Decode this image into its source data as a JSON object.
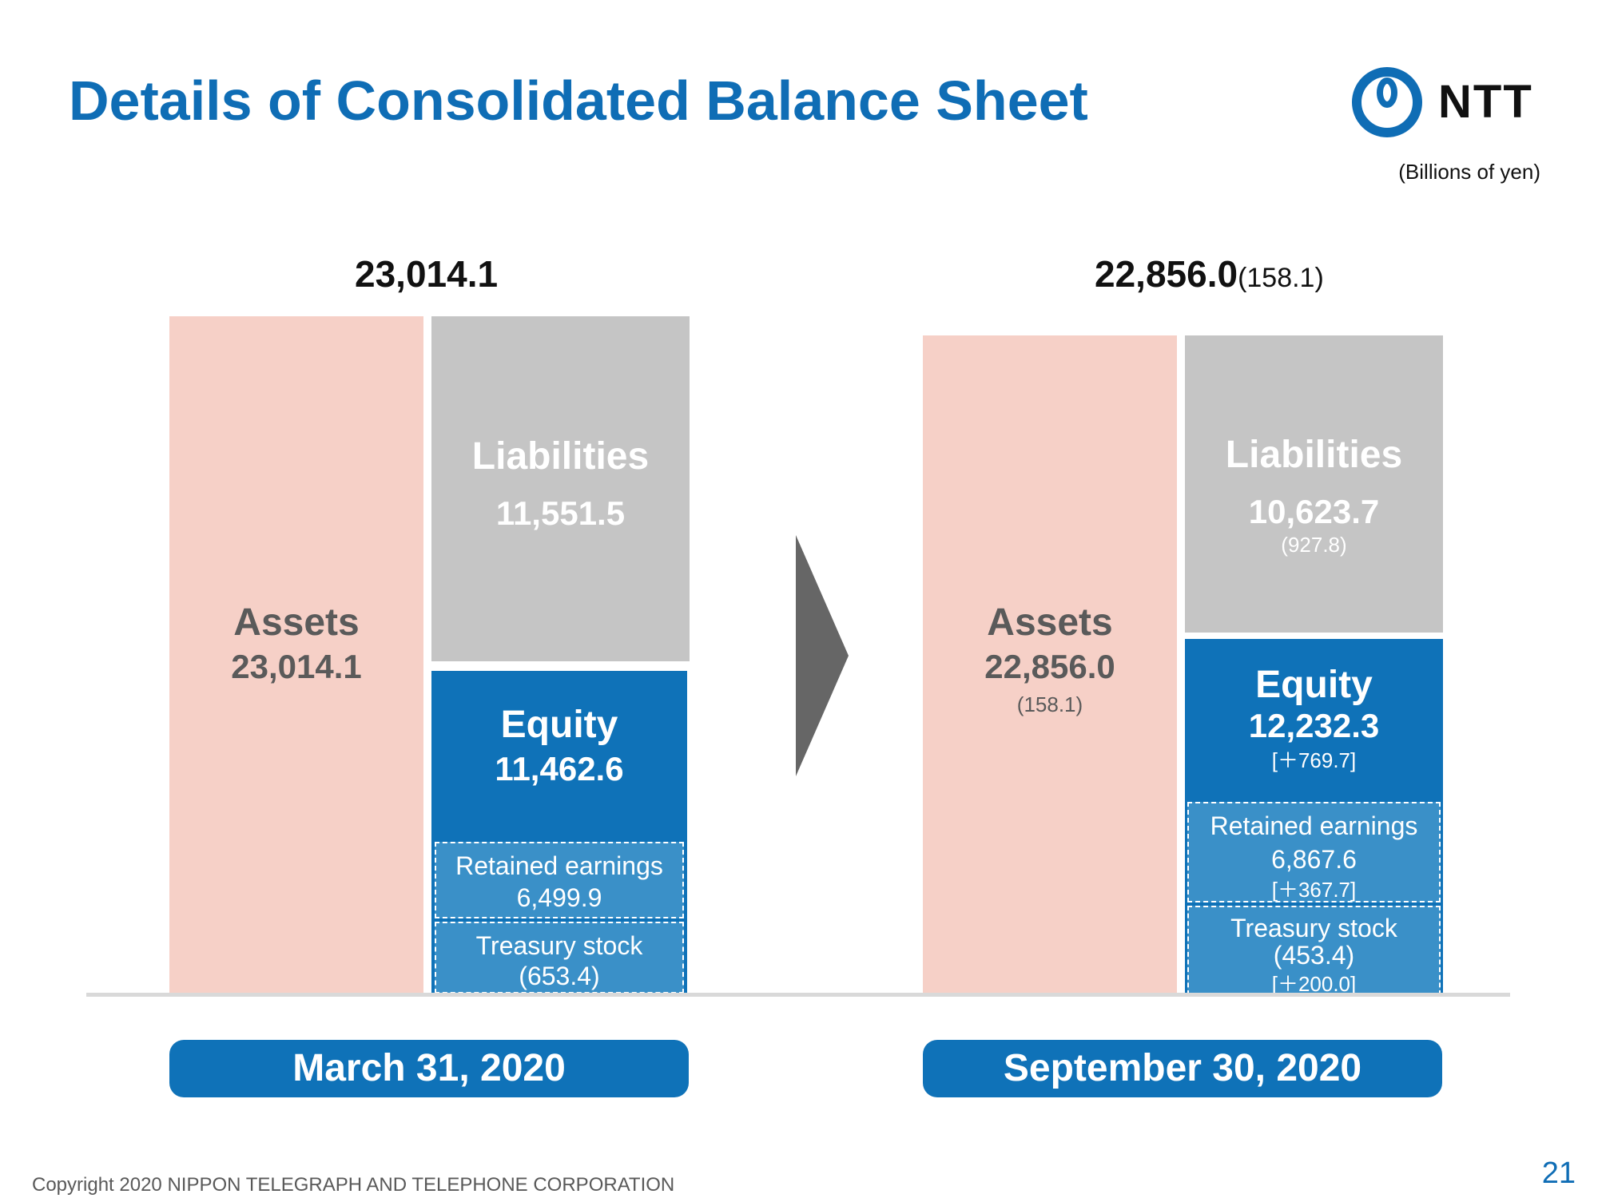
{
  "page": {
    "title": "Details of Consolidated Balance Sheet",
    "unit_note": "(Billions of yen)",
    "logo_text": "NTT",
    "footer": "Copyright 2020 NIPPON TELEGRAPH AND TELEPHONE CORPORATION",
    "page_number": "21",
    "arrow_icon": "chevron-right-icon"
  },
  "colors": {
    "title_blue": "#0f6db5",
    "assets": "#f6d0c7",
    "liabilities": "#c5c5c5",
    "equity": "#0f72b8",
    "equity_sub": "#3a90c8",
    "arrow": "#666666"
  },
  "chart_data": {
    "type": "bar",
    "title": "Details of Consolidated Balance Sheet",
    "unit": "(Billions of yen)",
    "periods": [
      {
        "date": "March 31, 2020",
        "total_label": "23,014.1",
        "total_change": "",
        "assets": {
          "label": "Assets",
          "value": 23014.1,
          "value_label": "23,014.1",
          "change": ""
        },
        "liabilities": {
          "label": "Liabilities",
          "value": 11551.5,
          "value_label": "11,551.5",
          "change": ""
        },
        "equity": {
          "label": "Equity",
          "value": 11462.6,
          "value_label": "11,462.6",
          "change": ""
        },
        "retained_earnings": {
          "label": "Retained earnings",
          "value": 6499.9,
          "value_label": "6,499.9",
          "change": ""
        },
        "treasury_stock": {
          "label": "Treasury stock",
          "value": -653.4,
          "value_label": "(653.4)",
          "change": ""
        }
      },
      {
        "date": "September 30, 2020",
        "total_label": "22,856.0",
        "total_change": "(158.1)",
        "assets": {
          "label": "Assets",
          "value": 22856.0,
          "value_label": "22,856.0",
          "change": "(158.1)"
        },
        "liabilities": {
          "label": "Liabilities",
          "value": 10623.7,
          "value_label": "10,623.7",
          "change": "(927.8)"
        },
        "equity": {
          "label": "Equity",
          "value": 12232.3,
          "value_label": "12,232.3",
          "change": "[＋769.7]"
        },
        "retained_earnings": {
          "label": "Retained earnings",
          "value": 6867.6,
          "value_label": "6,867.6",
          "change": "[＋367.7]"
        },
        "treasury_stock": {
          "label": "Treasury stock",
          "value": -453.4,
          "value_label": "(453.4)",
          "change": "[＋200.0]"
        }
      }
    ]
  }
}
